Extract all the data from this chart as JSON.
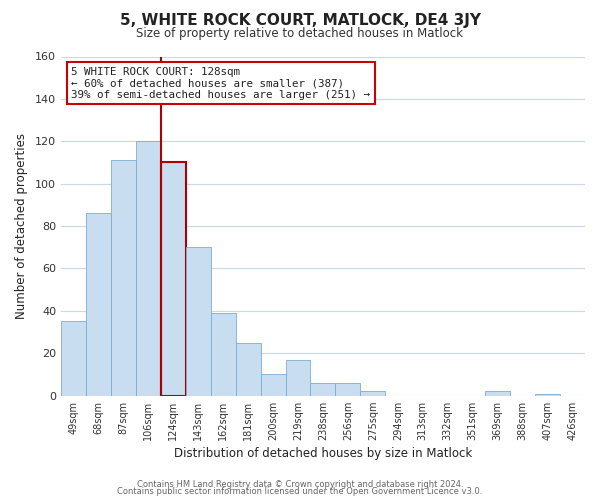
{
  "title": "5, WHITE ROCK COURT, MATLOCK, DE4 3JY",
  "subtitle": "Size of property relative to detached houses in Matlock",
  "xlabel": "Distribution of detached houses by size in Matlock",
  "ylabel": "Number of detached properties",
  "bar_labels": [
    "49sqm",
    "68sqm",
    "87sqm",
    "106sqm",
    "124sqm",
    "143sqm",
    "162sqm",
    "181sqm",
    "200sqm",
    "219sqm",
    "238sqm",
    "256sqm",
    "275sqm",
    "294sqm",
    "313sqm",
    "332sqm",
    "351sqm",
    "369sqm",
    "388sqm",
    "407sqm",
    "426sqm"
  ],
  "bar_values": [
    35,
    86,
    111,
    120,
    110,
    70,
    39,
    25,
    10,
    17,
    6,
    6,
    2,
    0,
    0,
    0,
    0,
    2,
    0,
    1,
    0
  ],
  "highlight_bar_index": 4,
  "bar_color": "#c9ddf0",
  "bar_edge_color": "#7aadd4",
  "highlight_line_color": "#aa0000",
  "annotation_text": "5 WHITE ROCK COURT: 128sqm\n← 60% of detached houses are smaller (387)\n39% of semi-detached houses are larger (251) →",
  "annotation_box_color": "#ffffff",
  "annotation_box_edge_color": "#cc0000",
  "ylim": [
    0,
    160
  ],
  "yticks": [
    0,
    20,
    40,
    60,
    80,
    100,
    120,
    140,
    160
  ],
  "footer_line1": "Contains HM Land Registry data © Crown copyright and database right 2024.",
  "footer_line2": "Contains public sector information licensed under the Open Government Licence v3.0.",
  "background_color": "#ffffff",
  "grid_color": "#c8d8e8"
}
